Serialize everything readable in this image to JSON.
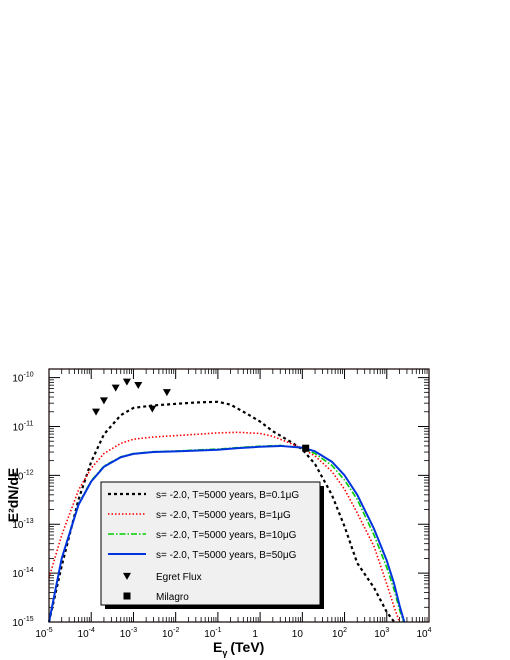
{
  "chart_data": {
    "type": "line",
    "xlabel": "E",
    "xlabel_sub": "γ",
    "xlabel_unit": "(TeV)",
    "ylabel": "E²dN/dE",
    "x_scale": "log",
    "y_scale": "log",
    "xlim": [
      1e-05,
      10000
    ],
    "ylim": [
      1e-15,
      1.5e-10
    ],
    "grid": false,
    "legend_position": "bottom-left",
    "x_ticks": [
      {
        "value": 1e-05,
        "base": "10",
        "exp": "-5"
      },
      {
        "value": 0.0001,
        "base": "10",
        "exp": "-4"
      },
      {
        "value": 0.001,
        "base": "10",
        "exp": "-3"
      },
      {
        "value": 0.01,
        "base": "10",
        "exp": "-2"
      },
      {
        "value": 0.1,
        "base": "10",
        "exp": "-1"
      },
      {
        "value": 1,
        "base": "1",
        "exp": ""
      },
      {
        "value": 10,
        "base": "10",
        "exp": ""
      },
      {
        "value": 100,
        "base": "10",
        "exp": "2"
      },
      {
        "value": 1000,
        "base": "10",
        "exp": "3"
      },
      {
        "value": 10000,
        "base": "10",
        "exp": "4"
      }
    ],
    "y_ticks": [
      {
        "value": 1e-15,
        "base": "10",
        "exp": "-15"
      },
      {
        "value": 1e-14,
        "base": "10",
        "exp": "-14"
      },
      {
        "value": 1e-13,
        "base": "10",
        "exp": "-13"
      },
      {
        "value": 1e-12,
        "base": "10",
        "exp": "-12"
      },
      {
        "value": 1e-11,
        "base": "10",
        "exp": "-11"
      },
      {
        "value": 1e-10,
        "base": "10",
        "exp": "-10"
      }
    ],
    "series": [
      {
        "name": "s= -2.0, T=5000 years, B=0.1μG",
        "color": "#000000",
        "dash": "3,3",
        "width": 2.2,
        "x": [
          1e-05,
          2e-05,
          5e-05,
          0.0001,
          0.0002,
          0.0005,
          0.001,
          0.003,
          0.01,
          0.03,
          0.1,
          0.2,
          0.5,
          1,
          2,
          5,
          10,
          20,
          50,
          100,
          200,
          500,
          1000,
          1500
        ],
        "y": [
          1e-15,
          1.4e-14,
          3.2e-13,
          1.9e-12,
          6.9e-12,
          1.7e-11,
          2.4e-11,
          2.7e-11,
          2.9e-11,
          3.1e-11,
          3.2e-11,
          2.8e-11,
          1.8e-11,
          1.26e-11,
          8e-12,
          5e-12,
          3.4e-12,
          1.7e-12,
          4e-13,
          9e-14,
          1.6e-14,
          5e-15,
          1.6e-15,
          1e-15
        ]
      },
      {
        "name": "s= -2.0, T=5000 years, B=1μG",
        "color": "#ff0000",
        "dash": "1.5,2",
        "width": 1.6,
        "x": [
          1e-05,
          2e-05,
          5e-05,
          0.0001,
          0.0002,
          0.0005,
          0.001,
          0.003,
          0.01,
          0.03,
          0.1,
          0.3,
          1,
          2,
          5,
          10,
          20,
          50,
          100,
          200,
          500,
          1000,
          1500,
          2000
        ],
        "y": [
          8e-15,
          6e-14,
          5e-13,
          1.4e-12,
          2.8e-12,
          4.5e-12,
          5.5e-12,
          6.1e-12,
          6.5e-12,
          6.9e-12,
          7.4e-12,
          7.6e-12,
          7.2e-12,
          6.3e-12,
          4.6e-12,
          3.5e-12,
          2.5e-12,
          1.2e-12,
          5.2e-13,
          1.7e-13,
          3.5e-14,
          6e-15,
          2e-15,
          1e-15
        ]
      },
      {
        "name": "s= -2.0, T=5000 years, B=10μG",
        "color": "#00cc00",
        "dash": "6,2,1.5,2",
        "width": 1.6,
        "x": [
          1e-05,
          2e-05,
          5e-05,
          0.0001,
          0.0002,
          0.0005,
          0.001,
          0.003,
          0.01,
          0.03,
          0.1,
          0.3,
          1,
          3,
          10,
          20,
          50,
          100,
          200,
          500,
          1000,
          1500,
          2000,
          2500
        ],
        "y": [
          1e-15,
          2e-14,
          2.6e-13,
          7.8e-13,
          1.55e-12,
          2.4e-12,
          2.8e-12,
          3.05e-12,
          3.15e-12,
          3.3e-12,
          3.45e-12,
          3.7e-12,
          3.95e-12,
          4.1e-12,
          3.6e-12,
          2.8e-12,
          1.6e-12,
          8e-13,
          3.2e-13,
          6e-14,
          1.3e-14,
          4.5e-15,
          1.8e-15,
          1e-15
        ]
      },
      {
        "name": "s= -2.0, T=5000 years, B=50μG",
        "color": "#0033dd",
        "dash": "",
        "width": 2,
        "x": [
          1e-05,
          2e-05,
          5e-05,
          0.0001,
          0.0002,
          0.0005,
          0.001,
          0.003,
          0.01,
          0.03,
          0.1,
          0.3,
          1,
          3,
          10,
          20,
          50,
          100,
          200,
          500,
          1000,
          1500,
          2000,
          2600
        ],
        "y": [
          1e-15,
          2e-14,
          2.5e-13,
          7.5e-13,
          1.5e-12,
          2.35e-12,
          2.75e-12,
          3e-12,
          3.1e-12,
          3.2e-12,
          3.35e-12,
          3.6e-12,
          3.85e-12,
          4e-12,
          3.7e-12,
          3.1e-12,
          1.9e-12,
          1e-12,
          4e-13,
          8e-14,
          1.8e-14,
          6e-15,
          2.2e-15,
          1e-15
        ]
      }
    ],
    "markers": [
      {
        "name": "Egret Flux",
        "shape": "triangle-down",
        "x": [
          0.00013,
          0.0002,
          0.00038,
          0.0007,
          0.0013,
          0.0028,
          0.0062
        ],
        "y": [
          2e-11,
          3.4e-11,
          6.2e-11,
          8.2e-11,
          7e-11,
          2.3e-11,
          5e-11
        ]
      },
      {
        "name": "Milagro",
        "shape": "square",
        "x": [
          12
        ],
        "y": [
          3.6e-12
        ]
      }
    ]
  }
}
